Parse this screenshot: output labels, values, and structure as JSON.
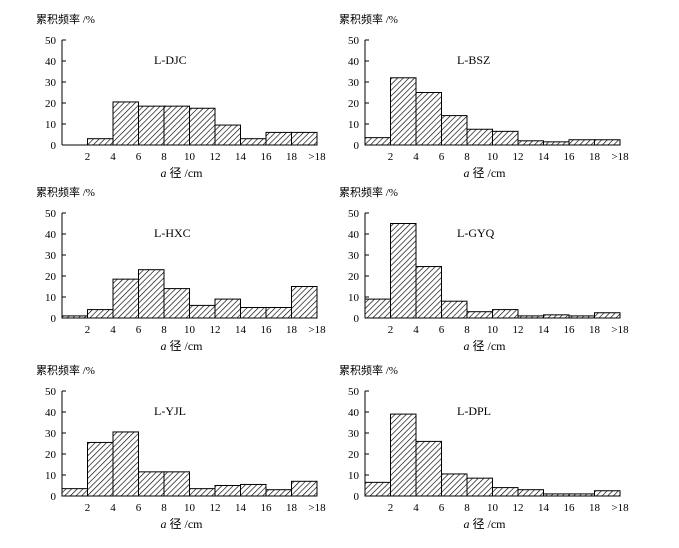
{
  "chart_data": [
    {
      "type": "bar",
      "title": "L-DJC",
      "ylabel": "累积频率 /%",
      "xlabel_symbol": "a",
      "xlabel_text": "径 /cm",
      "ylim": [
        0,
        50
      ],
      "yticks": [
        "0",
        "10",
        "20",
        "30",
        "40",
        "50"
      ],
      "xticks": [
        "2",
        "4",
        "6",
        "8",
        "10",
        "12",
        "14",
        "16",
        "18",
        ">18"
      ],
      "values": [
        0,
        3,
        20.5,
        18.5,
        18.5,
        17.5,
        9.5,
        3,
        6,
        6
      ]
    },
    {
      "type": "bar",
      "title": "L-BSZ",
      "ylabel": "累积频率 /%",
      "xlabel_symbol": "a",
      "xlabel_text": "径 /cm",
      "ylim": [
        0,
        50
      ],
      "yticks": [
        "0",
        "10",
        "20",
        "30",
        "40",
        "50"
      ],
      "xticks": [
        "2",
        "4",
        "6",
        "8",
        "10",
        "12",
        "14",
        "16",
        "18",
        ">18"
      ],
      "values": [
        3.5,
        32,
        25,
        14,
        7.5,
        6.5,
        2,
        1.5,
        2.5,
        2.5
      ]
    },
    {
      "type": "bar",
      "title": "L-HXC",
      "ylabel": "累积频率 /%",
      "xlabel_symbol": "a",
      "xlabel_text": "径 /cm",
      "ylim": [
        0,
        50
      ],
      "yticks": [
        "0",
        "10",
        "20",
        "30",
        "40",
        "50"
      ],
      "xticks": [
        "2",
        "4",
        "6",
        "8",
        "10",
        "12",
        "14",
        "16",
        "18",
        ">18"
      ],
      "values": [
        1,
        4,
        18.5,
        23,
        14,
        6,
        9,
        5,
        5,
        15
      ]
    },
    {
      "type": "bar",
      "title": "L-GYQ",
      "ylabel": "累积频率 /%",
      "xlabel_symbol": "a",
      "xlabel_text": "径 /cm",
      "ylim": [
        0,
        50
      ],
      "yticks": [
        "0",
        "10",
        "20",
        "30",
        "40",
        "50"
      ],
      "xticks": [
        "2",
        "4",
        "6",
        "8",
        "10",
        "12",
        "14",
        "16",
        "18",
        ">18"
      ],
      "values": [
        9,
        45,
        24.5,
        8,
        3,
        4,
        1,
        1.5,
        1,
        2.5
      ]
    },
    {
      "type": "bar",
      "title": "L-YJL",
      "ylabel": "累积频率 /%",
      "xlabel_symbol": "a",
      "xlabel_text": "径 /cm",
      "ylim": [
        0,
        50
      ],
      "yticks": [
        "0",
        "10",
        "20",
        "30",
        "40",
        "50"
      ],
      "xticks": [
        "2",
        "4",
        "6",
        "8",
        "10",
        "12",
        "14",
        "16",
        "18",
        ">18"
      ],
      "values": [
        3.5,
        25.5,
        30.5,
        11.5,
        11.5,
        3.5,
        5,
        5.5,
        3,
        7
      ]
    },
    {
      "type": "bar",
      "title": "L-DPL",
      "ylabel": "累积频率 /%",
      "xlabel_symbol": "a",
      "xlabel_text": "径 /cm",
      "ylim": [
        0,
        50
      ],
      "yticks": [
        "0",
        "10",
        "20",
        "30",
        "40",
        "50"
      ],
      "xticks": [
        "2",
        "4",
        "6",
        "8",
        "10",
        "12",
        "14",
        "16",
        "18",
        ">18"
      ],
      "values": [
        6.5,
        39,
        26,
        10.5,
        8.5,
        4,
        3,
        1,
        1,
        2.5
      ]
    }
  ]
}
